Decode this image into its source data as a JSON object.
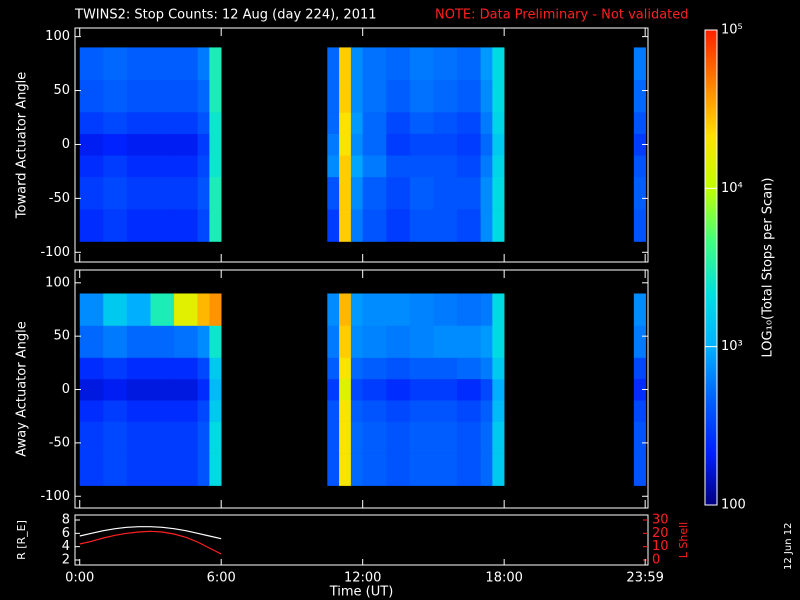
{
  "title": "TWINS2: Stop Counts: 12 Aug (day 224), 2011",
  "note": "NOTE: Data Preliminary - Not validated",
  "date_stamp": "12 Jun 12",
  "chart_data": [
    {
      "type": "heatmap",
      "ylabel": "Toward Actuator Angle",
      "x": [
        0,
        1,
        2,
        3,
        4,
        5,
        5.5,
        6,
        10.5,
        11,
        11.5,
        12,
        13,
        14,
        15,
        16,
        17,
        17.5,
        18,
        23.5,
        24
      ],
      "y": [
        -90,
        -60,
        -30,
        -10,
        10,
        30,
        60,
        90
      ],
      "values": [
        [
          250,
          300,
          250,
          250,
          250,
          350,
          3000,
          null,
          300,
          25000,
          600,
          400,
          300,
          400,
          400,
          350,
          700,
          2000,
          null,
          400
        ],
        [
          300,
          350,
          300,
          300,
          300,
          400,
          3000,
          null,
          400,
          25000,
          700,
          450,
          350,
          450,
          400,
          400,
          700,
          2000,
          null,
          450
        ],
        [
          250,
          300,
          250,
          250,
          250,
          350,
          2500,
          null,
          700,
          25000,
          900,
          600,
          400,
          400,
          400,
          350,
          600,
          1800,
          null,
          400
        ],
        [
          200,
          220,
          200,
          200,
          200,
          300,
          2500,
          null,
          600,
          20000,
          700,
          500,
          300,
          350,
          350,
          300,
          500,
          1500,
          null,
          300
        ],
        [
          300,
          350,
          300,
          300,
          300,
          400,
          2500,
          null,
          500,
          20000,
          800,
          500,
          350,
          450,
          400,
          350,
          600,
          1800,
          null,
          400
        ],
        [
          400,
          450,
          400,
          400,
          400,
          500,
          3000,
          null,
          500,
          25000,
          700,
          550,
          450,
          550,
          500,
          450,
          700,
          2000,
          null,
          500
        ],
        [
          450,
          500,
          450,
          450,
          450,
          600,
          3000,
          null,
          500,
          25000,
          700,
          550,
          500,
          600,
          550,
          500,
          800,
          2000,
          null,
          600
        ]
      ],
      "xlim": [
        -0.2,
        24.1
      ],
      "ylim": [
        -109,
        108
      ],
      "yticks": [
        -100,
        -50,
        0,
        50,
        100
      ]
    },
    {
      "type": "heatmap",
      "ylabel": "Away Actuator Angle",
      "x": [
        0,
        1,
        2,
        3,
        4,
        5,
        5.5,
        6,
        10.5,
        11,
        11.5,
        12,
        13,
        14,
        15,
        16,
        17,
        17.5,
        18,
        23.5,
        24
      ],
      "y": [
        -90,
        -60,
        -30,
        -10,
        10,
        30,
        60,
        90
      ],
      "values": [
        [
          300,
          350,
          300,
          300,
          300,
          400,
          2000,
          null,
          400,
          20000,
          500,
          450,
          400,
          450,
          450,
          400,
          500,
          1500,
          null,
          400
        ],
        [
          300,
          350,
          300,
          300,
          300,
          400,
          2000,
          null,
          400,
          20000,
          500,
          450,
          400,
          450,
          450,
          400,
          500,
          1500,
          null,
          400
        ],
        [
          250,
          300,
          250,
          250,
          250,
          350,
          1500,
          null,
          400,
          20000,
          450,
          400,
          350,
          400,
          400,
          350,
          450,
          1200,
          null,
          350
        ],
        [
          180,
          200,
          180,
          180,
          180,
          250,
          1200,
          null,
          300,
          15000,
          350,
          300,
          250,
          300,
          300,
          250,
          350,
          1000,
          null,
          250
        ],
        [
          250,
          300,
          250,
          250,
          250,
          350,
          1500,
          null,
          450,
          20000,
          500,
          450,
          400,
          450,
          450,
          500,
          600,
          1500,
          null,
          350
        ],
        [
          500,
          600,
          500,
          500,
          550,
          700,
          2500,
          null,
          600,
          25000,
          700,
          650,
          600,
          650,
          700,
          700,
          800,
          2000,
          null,
          600
        ],
        [
          700,
          1500,
          1000,
          3000,
          15000,
          30000,
          40000,
          null,
          700,
          30000,
          800,
          700,
          700,
          650,
          600,
          550,
          600,
          2000,
          null,
          700
        ]
      ],
      "xlim": [
        -0.2,
        24.1
      ],
      "ylim": [
        -111,
        112
      ],
      "yticks": [
        -100,
        -50,
        0,
        50,
        100
      ]
    },
    {
      "type": "colorbar",
      "label": "LOG₁₀(Total Stops per Scan)",
      "log": true,
      "lim": [
        100,
        100000
      ],
      "ticks": [
        100,
        {
          "value": 1000,
          "label": "10³"
        },
        {
          "value": 10000,
          "label": "10⁴"
        },
        {
          "value": 100000,
          "label": "10⁵"
        }
      ],
      "colors": [
        "#000080",
        "#0020ff",
        "#0060ff",
        "#00b0ff",
        "#00e0e0",
        "#40ff80",
        "#c0ff00",
        "#ffe000",
        "#ff8000",
        "#ff2000"
      ]
    },
    {
      "type": "line",
      "xlabel": "Time (UT)",
      "ylabel": "R [R_E]",
      "y2label": "L Shell",
      "y2color": "#ff2020",
      "x": [
        0,
        0.5,
        1,
        1.5,
        2,
        2.5,
        3,
        3.5,
        4,
        4.5,
        5,
        5.5,
        6
      ],
      "series": [
        {
          "color": "#ffffff",
          "values": [
            5.6,
            6.0,
            6.4,
            6.7,
            6.9,
            7.0,
            7.0,
            6.9,
            6.7,
            6.4,
            6.0,
            5.6,
            5.2
          ]
        },
        {
          "color": "#ff2020",
          "axis": "y2",
          "values": [
            12,
            14,
            16.5,
            18.5,
            20,
            21,
            21.5,
            21,
            19.5,
            17,
            13.5,
            9,
            4.5
          ]
        }
      ],
      "xlim": [
        -0.2,
        24.1
      ],
      "xticks": [
        {
          "value": 0,
          "label": "0:00"
        },
        {
          "value": 6,
          "label": "6:00"
        },
        {
          "value": 12,
          "label": "12:00"
        },
        {
          "value": 18,
          "label": "18:00"
        },
        {
          "value": 23.98,
          "label": "23:59"
        }
      ],
      "ylim": [
        1.25,
        8.75
      ],
      "yticks": [
        2,
        4,
        6,
        8
      ],
      "y2lim": [
        -3.75,
        33.75
      ],
      "y2ticks": [
        0,
        10,
        20,
        30
      ]
    }
  ]
}
